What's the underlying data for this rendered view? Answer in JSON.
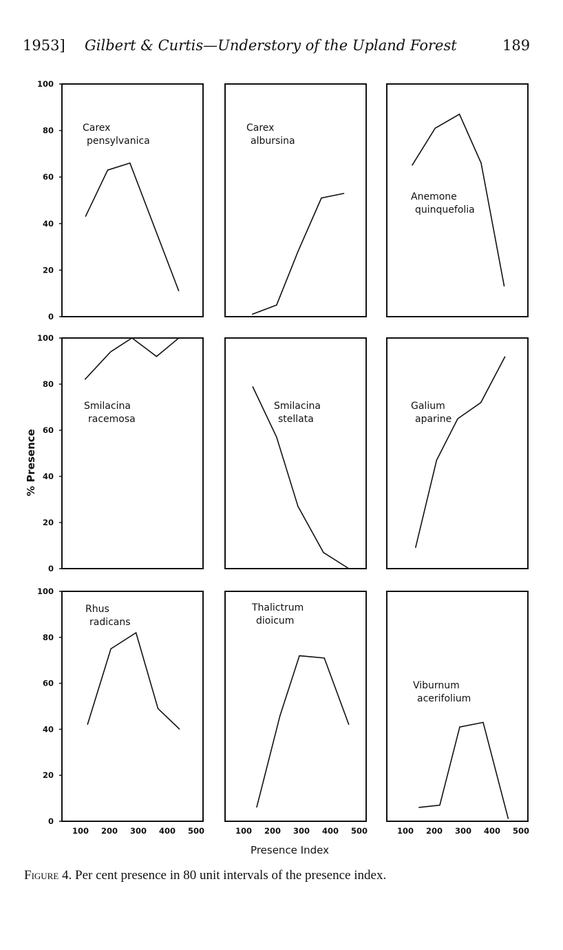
{
  "header": {
    "year": "1953]",
    "running_title": "Gilbert & Curtis—Understory of the Upland Forest",
    "page_number": "189"
  },
  "caption": {
    "label": "Figure 4.",
    "text": " Per cent presence in 80 unit intervals of the presence index."
  },
  "chart_data": {
    "type": "line",
    "layout": "3x3 small multiples",
    "ylabel": "% Presence",
    "xlabel": "Presence Index",
    "ylim": [
      0,
      100
    ],
    "xlim": [
      35,
      535
    ],
    "yticks": [
      "0",
      "20",
      "40",
      "60",
      "80",
      "100"
    ],
    "xticks": [
      "100",
      "200",
      "300",
      "400",
      "500"
    ],
    "grid": false,
    "panels": [
      {
        "name": [
          "Carex",
          "pensylvanica"
        ],
        "x": [
          117,
          194,
          271,
          440
        ],
        "y": [
          43,
          63,
          66,
          11
        ]
      },
      {
        "name": [
          "Carex",
          "albursina"
        ],
        "x": [
          129,
          214,
          288,
          369,
          448
        ],
        "y": [
          1,
          5,
          28,
          51,
          53
        ]
      },
      {
        "name": [
          "Anemone",
          "quinquefolia"
        ],
        "x": [
          123,
          203,
          287,
          362,
          442
        ],
        "y": [
          65,
          81,
          87,
          66,
          13
        ]
      },
      {
        "name": [
          "Smilacina",
          "racemosa"
        ],
        "x": [
          115,
          204,
          278,
          363,
          440
        ],
        "y": [
          82,
          94,
          100,
          92,
          100
        ]
      },
      {
        "name": [
          "Smilacina",
          "stellata"
        ],
        "x": [
          131,
          214,
          288,
          376,
          464
        ],
        "y": [
          79,
          57,
          27,
          7,
          0
        ]
      },
      {
        "name": [
          "Galium",
          "aparine"
        ],
        "x": [
          135,
          208,
          281,
          361,
          445
        ],
        "y": [
          9,
          47,
          65,
          72,
          92
        ]
      },
      {
        "name": [
          "Rhus",
          "radicans"
        ],
        "x": [
          124,
          205,
          292,
          368,
          443
        ],
        "y": [
          42,
          75,
          82,
          49,
          40
        ]
      },
      {
        "name": [
          "Thalictrum",
          "dioicum"
        ],
        "x": [
          145,
          226,
          293,
          379,
          464
        ],
        "y": [
          6,
          46,
          72,
          71,
          42
        ]
      },
      {
        "name": [
          "Viburnum",
          "acerifolium"
        ],
        "x": [
          146,
          219,
          288,
          369,
          456
        ],
        "y": [
          6,
          7,
          41,
          43,
          1
        ]
      }
    ]
  }
}
